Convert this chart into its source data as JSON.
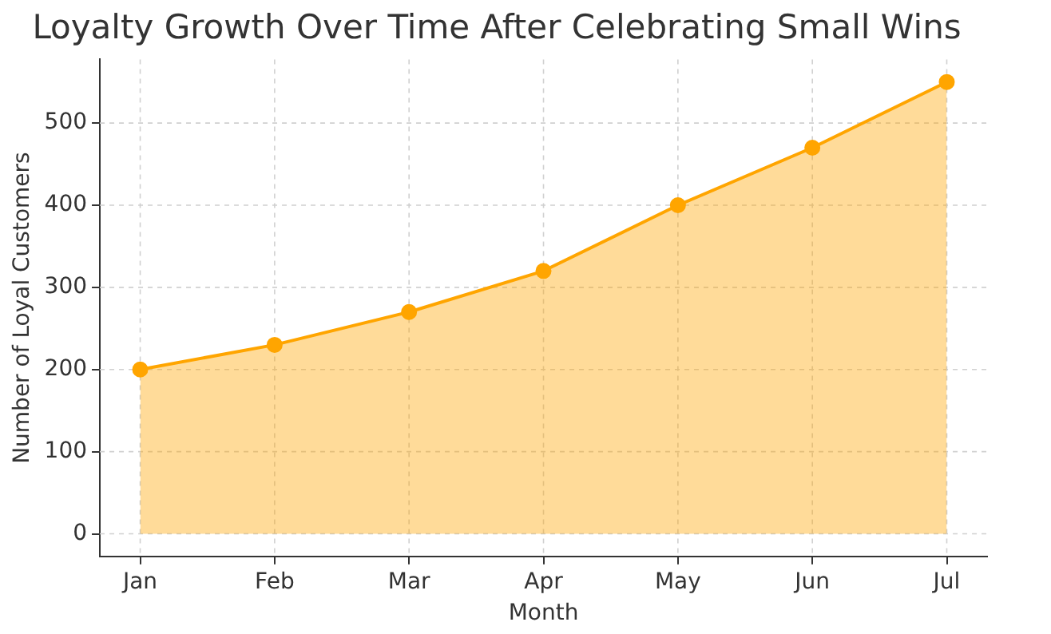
{
  "chart_data": {
    "type": "area",
    "title": "Loyalty Growth Over Time After Celebrating Small Wins",
    "xlabel": "Month",
    "ylabel": "Number of Loyal Customers",
    "categories": [
      "Jan",
      "Feb",
      "Mar",
      "Apr",
      "May",
      "Jun",
      "Jul"
    ],
    "series": [
      {
        "color": "#ffa500",
        "values": [
          200,
          230,
          270,
          320,
          400,
          470,
          550
        ]
      }
    ],
    "ylim": [
      -27.5,
      577.5
    ],
    "yticks": [
      0,
      100,
      200,
      300,
      400,
      500
    ],
    "grid": true,
    "marker": "circle",
    "line_style": "solid"
  }
}
